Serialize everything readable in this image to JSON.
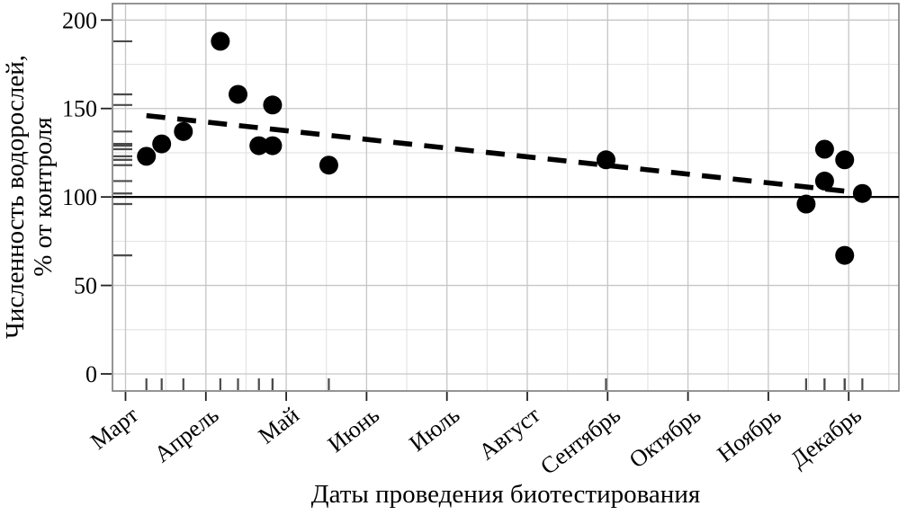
{
  "chart_data": {
    "type": "scatter",
    "title": "",
    "xlabel": "Даты проведения биотестирования",
    "ylabel_lines": [
      "Численность водорослей,",
      "% от контроля"
    ],
    "x_tick_labels": [
      "Март",
      "Апрель",
      "Май",
      "Июнь",
      "Июль",
      "Август",
      "Сентябрь",
      "Октябрь",
      "Ноябрь",
      "Декабрь"
    ],
    "y_ticks": [
      0,
      50,
      100,
      150,
      200
    ],
    "y_minor_ticks": [
      25,
      75,
      125,
      175
    ],
    "x_minor_step": 0.5,
    "ylim": [
      -10,
      210
    ],
    "xlim": [
      0.84,
      10.62
    ],
    "grid": {
      "major": true,
      "minor": true,
      "legend": "none"
    },
    "reference_line_y": 100,
    "trendline": {
      "style": "dashed",
      "x1": 1.26,
      "y1": 146,
      "x2": 10.22,
      "y2": 102
    },
    "points": [
      {
        "x": 1.26,
        "y": 123
      },
      {
        "x": 1.45,
        "y": 130
      },
      {
        "x": 1.72,
        "y": 137
      },
      {
        "x": 2.18,
        "y": 188
      },
      {
        "x": 2.4,
        "y": 158
      },
      {
        "x": 2.66,
        "y": 129
      },
      {
        "x": 2.83,
        "y": 152
      },
      {
        "x": 2.83,
        "y": 129
      },
      {
        "x": 3.53,
        "y": 118
      },
      {
        "x": 6.98,
        "y": 121
      },
      {
        "x": 9.47,
        "y": 96
      },
      {
        "x": 9.7,
        "y": 127
      },
      {
        "x": 9.7,
        "y": 109
      },
      {
        "x": 9.95,
        "y": 121
      },
      {
        "x": 9.95,
        "y": 67
      },
      {
        "x": 10.17,
        "y": 102
      }
    ],
    "rug": {
      "left": true,
      "bottom": true
    },
    "colors": {
      "point": "#000000",
      "trend": "#000000",
      "reference_line": "#000000",
      "grid_major": "#c6c6c6",
      "grid_minor": "#e2e2e2",
      "panel_border": "#7a7a7a",
      "rug": "#4b4b4b",
      "tick": "#222222",
      "text": "#000000",
      "background": "#ffffff"
    }
  }
}
